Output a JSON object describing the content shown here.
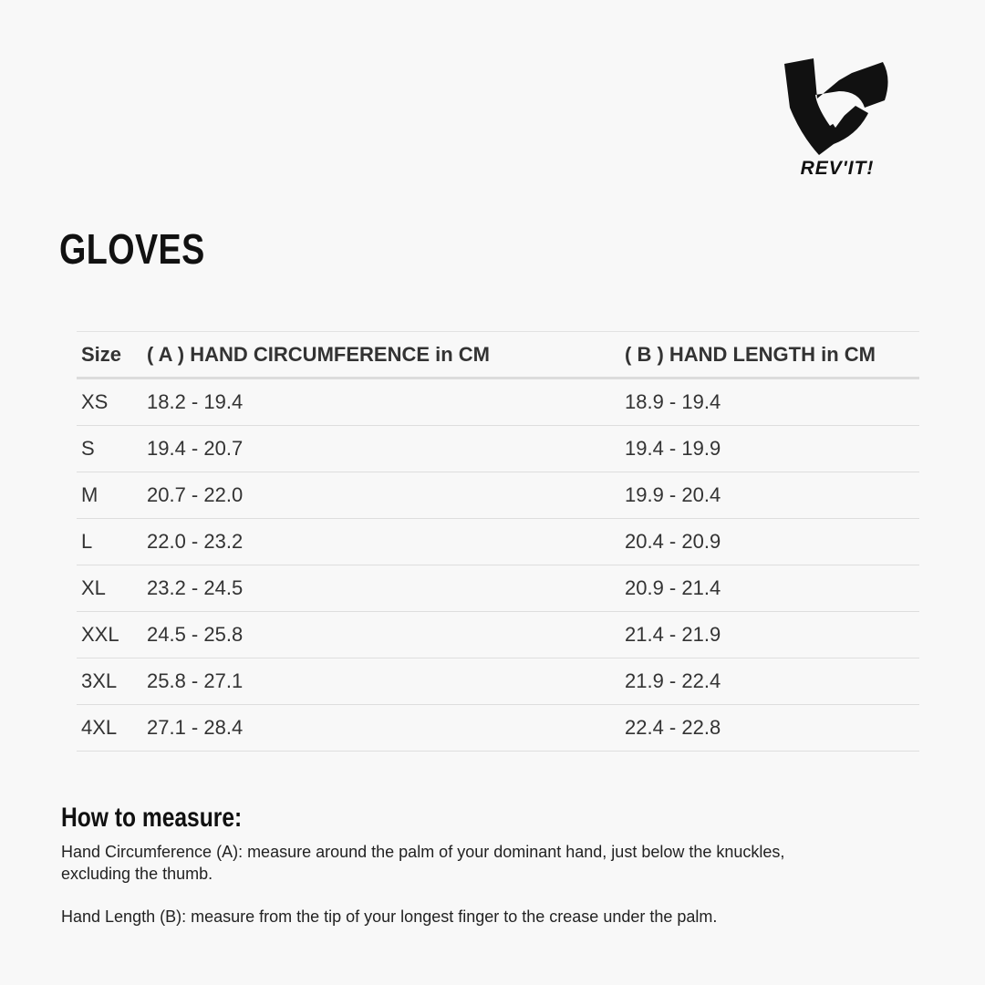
{
  "brand": {
    "logo_text": "REV'IT!"
  },
  "title": "GLOVES",
  "table": {
    "headers": [
      "Size",
      "( A ) HAND CIRCUMFERENCE in CM",
      "( B ) HAND LENGTH in CM"
    ],
    "rows": [
      [
        "XS",
        "18.2 - 19.4",
        "18.9 - 19.4"
      ],
      [
        "S",
        "19.4 - 20.7",
        "19.4 - 19.9"
      ],
      [
        "M",
        "20.7 - 22.0",
        "19.9 - 20.4"
      ],
      [
        "L",
        "22.0 - 23.2",
        "20.4 - 20.9"
      ],
      [
        "XL",
        "23.2 - 24.5",
        "20.9 - 21.4"
      ],
      [
        "XXL",
        "24.5 - 25.8",
        "21.4 - 21.9"
      ],
      [
        "3XL",
        "25.8 - 27.1",
        "21.9 - 22.4"
      ],
      [
        "4XL",
        "27.1 - 28.4",
        "22.4 - 22.8"
      ]
    ]
  },
  "how_to": {
    "heading": "How to measure:",
    "circumference_line1": "Hand Circumference (A): measure around the palm of your dominant hand, just below the knuckles,",
    "circumference_line2": "excluding the thumb.",
    "length": "Hand Length (B): measure from the tip of your longest finger to the crease under the palm."
  }
}
